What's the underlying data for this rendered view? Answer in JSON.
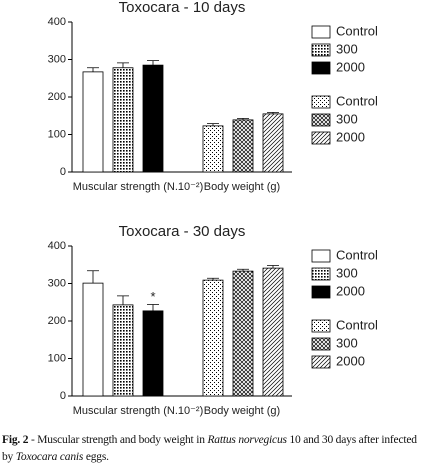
{
  "chart_data": [
    {
      "type": "bar",
      "title": "Toxocara - 10 days",
      "categories": [
        "Muscular strength (N.10⁻²)",
        "Body weight (g)"
      ],
      "ylim": [
        0,
        400
      ],
      "yticks": [
        0,
        100,
        200,
        300,
        400
      ],
      "grid": false,
      "series": [
        {
          "name": "Control",
          "color": "#000000",
          "pattern": "empty",
          "values": [
            267,
            null
          ],
          "errors": [
            11,
            null
          ]
        },
        {
          "name": "300",
          "color": "#000000",
          "pattern": "grid",
          "values": [
            278,
            null
          ],
          "errors": [
            13,
            null
          ]
        },
        {
          "name": "2000",
          "color": "#000000",
          "pattern": "solid",
          "values": [
            285,
            null
          ],
          "errors": [
            12,
            null
          ]
        },
        {
          "name": "Control",
          "color": "#000000",
          "pattern": "dots",
          "values": [
            null,
            123
          ],
          "errors": [
            null,
            6
          ]
        },
        {
          "name": "300",
          "color": "#000000",
          "pattern": "crosshatch",
          "values": [
            null,
            139
          ],
          "errors": [
            null,
            4
          ]
        },
        {
          "name": "2000",
          "color": "#000000",
          "pattern": "diagonal",
          "values": [
            null,
            155
          ],
          "errors": [
            null,
            4
          ]
        }
      ]
    },
    {
      "type": "bar",
      "title": "Toxocara - 30 days",
      "categories": [
        "Muscular strength (N.10⁻²)",
        "Body weight (g)"
      ],
      "ylim": [
        0,
        400
      ],
      "yticks": [
        0,
        100,
        200,
        300,
        400
      ],
      "grid": false,
      "annotation": "*",
      "series": [
        {
          "name": "Control",
          "color": "#000000",
          "pattern": "empty",
          "values": [
            301,
            null
          ],
          "errors": [
            33,
            null
          ]
        },
        {
          "name": "300",
          "color": "#000000",
          "pattern": "grid",
          "values": [
            243,
            null
          ],
          "errors": [
            24,
            null
          ]
        },
        {
          "name": "2000",
          "color": "#000000",
          "pattern": "solid",
          "values": [
            227,
            null
          ],
          "errors": [
            17,
            null
          ]
        },
        {
          "name": "Control",
          "color": "#000000",
          "pattern": "dots",
          "values": [
            null,
            309
          ],
          "errors": [
            null,
            5
          ]
        },
        {
          "name": "300",
          "color": "#000000",
          "pattern": "crosshatch",
          "values": [
            null,
            333
          ],
          "errors": [
            null,
            5
          ]
        },
        {
          "name": "2000",
          "color": "#000000",
          "pattern": "diagonal",
          "values": [
            null,
            341
          ],
          "errors": [
            null,
            7
          ]
        }
      ]
    }
  ],
  "caption": {
    "parts": [
      "Fig. 2",
      " - Muscular strength and body weight in ",
      "Rattus norvegicus",
      " 10 and 30 days after infected by ",
      "Toxocara canis",
      " eggs."
    ]
  }
}
